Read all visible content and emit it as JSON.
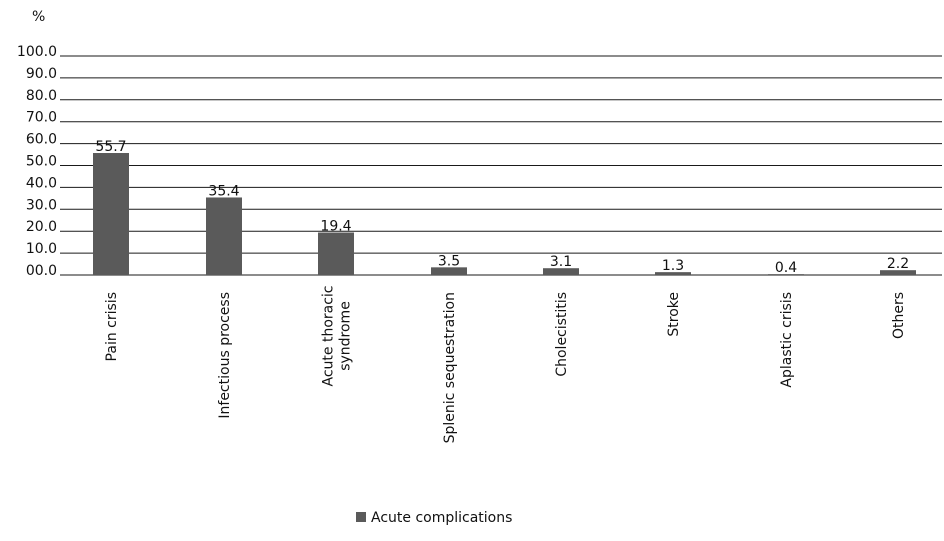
{
  "chart_data": {
    "type": "bar",
    "title": "",
    "ylabel": "%",
    "xlabel": "",
    "ylim": [
      0,
      100
    ],
    "yticks": [
      "00.0",
      "10.0",
      "20.0",
      "30.0",
      "40.0",
      "50.0",
      "60.0",
      "70.0",
      "80.0",
      "90.0",
      "100.0"
    ],
    "grid": true,
    "legend_position": "bottom",
    "categories": [
      [
        "Pain crisis"
      ],
      [
        "Infectious process"
      ],
      [
        "Acute thoracic",
        "syndrome"
      ],
      [
        "Splenic sequestration"
      ],
      [
        "Cholecistitis"
      ],
      [
        "Stroke"
      ],
      [
        "Aplastic crisis"
      ],
      [
        "Others"
      ]
    ],
    "series": [
      {
        "name": "Acute complications",
        "color": "#5a5a5a",
        "values": [
          55.7,
          35.4,
          19.4,
          3.5,
          3.1,
          1.3,
          0.4,
          2.2
        ],
        "labels": [
          "55.7",
          "35.4",
          "19.4",
          "3.5",
          "3.1",
          "1.3",
          "0.4",
          "2.2"
        ]
      }
    ]
  }
}
